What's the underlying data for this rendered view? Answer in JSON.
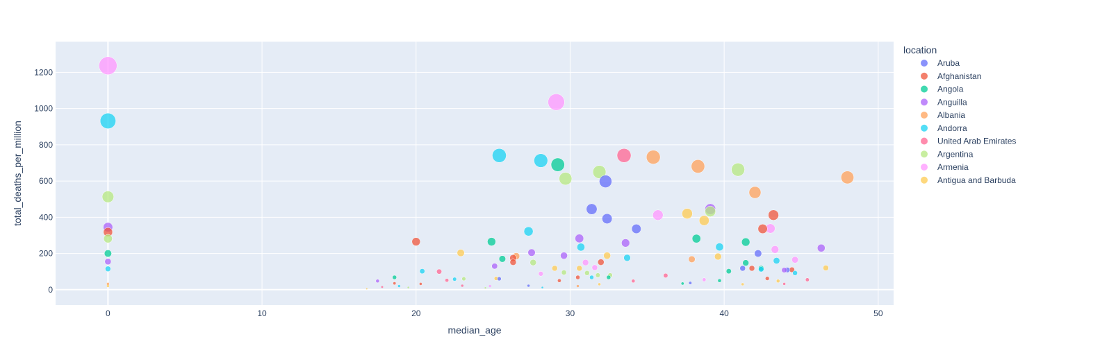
{
  "chart_data": {
    "type": "scatter",
    "xlabel": "median_age",
    "ylabel": "total_deaths_per_million",
    "xlim": [
      -3.4,
      51
    ],
    "ylim": [
      -85,
      1370
    ],
    "x_ticks": [
      0,
      10,
      20,
      30,
      40,
      50
    ],
    "y_ticks": [
      0,
      200,
      400,
      600,
      800,
      1000,
      1200
    ],
    "grid": true,
    "marker_size_encodes": "total_deaths_per_million",
    "legend": {
      "title": "location",
      "placement": "right"
    },
    "series": [
      {
        "name": "Aruba",
        "color": "#636efa",
        "points": [
          [
            32.3,
            598
          ],
          [
            31.4,
            445
          ],
          [
            32.4,
            392
          ],
          [
            34.3,
            336
          ],
          [
            42.2,
            200
          ],
          [
            41.2,
            118
          ],
          [
            44.1,
            109
          ],
          [
            37.8,
            37
          ],
          [
            25.4,
            60
          ],
          [
            27.3,
            22
          ]
        ]
      },
      {
        "name": "Afghanistan",
        "color": "#EF553B",
        "points": [
          [
            43.2,
            412
          ],
          [
            42.5,
            336
          ],
          [
            0,
            318
          ],
          [
            20,
            265
          ],
          [
            32,
            152
          ],
          [
            26.3,
            152
          ],
          [
            26.3,
            175
          ],
          [
            44.4,
            110
          ],
          [
            41.8,
            118
          ],
          [
            42.8,
            62
          ],
          [
            30.5,
            68
          ],
          [
            18.6,
            35
          ],
          [
            20.3,
            32
          ],
          [
            29.3,
            50
          ]
        ]
      },
      {
        "name": "Angola",
        "color": "#00cc96",
        "points": [
          [
            29.2,
            690
          ],
          [
            38.2,
            282
          ],
          [
            24.9,
            265
          ],
          [
            41.4,
            263
          ],
          [
            0,
            200
          ],
          [
            25.6,
            170
          ],
          [
            41.4,
            148
          ],
          [
            42.4,
            118
          ],
          [
            32.5,
            68
          ],
          [
            40.3,
            102
          ],
          [
            18.6,
            68
          ],
          [
            39.7,
            50
          ],
          [
            37.3,
            34
          ]
        ]
      },
      {
        "name": "Anguilla",
        "color": "#ab63fa",
        "points": [
          [
            39.1,
            445
          ],
          [
            0,
            345
          ],
          [
            30.6,
            283
          ],
          [
            33.6,
            258
          ],
          [
            46.3,
            230
          ],
          [
            27.5,
            205
          ],
          [
            29.6,
            188
          ],
          [
            0,
            155
          ],
          [
            25.1,
            130
          ],
          [
            43.9,
            108
          ],
          [
            17.5,
            48
          ]
        ]
      },
      {
        "name": "Albania",
        "color": "#FFA15A",
        "points": [
          [
            35.4,
            732
          ],
          [
            38.3,
            681
          ],
          [
            48,
            620
          ],
          [
            42,
            537
          ],
          [
            26.5,
            185
          ],
          [
            37.9,
            168
          ],
          [
            0,
            32
          ],
          [
            30.5,
            20
          ]
        ]
      },
      {
        "name": "Andorra",
        "color": "#19d3f3",
        "points": [
          [
            0,
            932
          ],
          [
            25.4,
            741
          ],
          [
            28.1,
            713
          ],
          [
            27.3,
            322
          ],
          [
            30.7,
            235
          ],
          [
            39.7,
            236
          ],
          [
            33.7,
            176
          ],
          [
            43.4,
            160
          ],
          [
            20.4,
            102
          ],
          [
            0,
            115
          ],
          [
            42.4,
            113
          ],
          [
            44.6,
            92
          ],
          [
            31.4,
            68
          ],
          [
            22.5,
            58
          ],
          [
            18.9,
            20
          ],
          [
            28.2,
            12
          ]
        ]
      },
      {
        "name": "United Arab Emirates",
        "color": "#FF6692",
        "points": [
          [
            33.5,
            741
          ],
          [
            21.5,
            100
          ],
          [
            36.2,
            78
          ],
          [
            22,
            52
          ],
          [
            34.1,
            48
          ],
          [
            45.4,
            55
          ],
          [
            43.9,
            32
          ],
          [
            23,
            22
          ],
          [
            17.8,
            15
          ]
        ]
      },
      {
        "name": "Argentina",
        "color": "#B6E880",
        "points": [
          [
            31.9,
            650
          ],
          [
            40.9,
            663
          ],
          [
            29.7,
            613
          ],
          [
            0,
            513
          ],
          [
            39.1,
            432
          ],
          [
            0,
            282
          ],
          [
            27.6,
            150
          ],
          [
            29.6,
            95
          ],
          [
            32.6,
            80
          ],
          [
            31.1,
            92
          ],
          [
            31.8,
            80
          ],
          [
            23.1,
            60
          ],
          [
            19.5,
            12
          ],
          [
            24.5,
            10
          ]
        ]
      },
      {
        "name": "Armenia",
        "color": "#FF97FF",
        "points": [
          [
            0,
            1237
          ],
          [
            29.1,
            1036
          ],
          [
            35.7,
            412
          ],
          [
            43,
            338
          ],
          [
            43.3,
            222
          ],
          [
            31,
            150
          ],
          [
            31.6,
            122
          ],
          [
            44.6,
            165
          ],
          [
            28.1,
            88
          ],
          [
            38.7,
            55
          ],
          [
            24.8,
            20
          ]
        ]
      },
      {
        "name": "Antigua and Barbuda",
        "color": "#FECB52",
        "points": [
          [
            37.6,
            420
          ],
          [
            38.7,
            382
          ],
          [
            22.9,
            203
          ],
          [
            32.4,
            188
          ],
          [
            39.6,
            183
          ],
          [
            46.6,
            120
          ],
          [
            29,
            118
          ],
          [
            30.6,
            118
          ],
          [
            43.5,
            48
          ],
          [
            25.2,
            62
          ],
          [
            41.2,
            30
          ],
          [
            31.9,
            30
          ],
          [
            0,
            20
          ],
          [
            16.8,
            5
          ]
        ]
      }
    ]
  }
}
